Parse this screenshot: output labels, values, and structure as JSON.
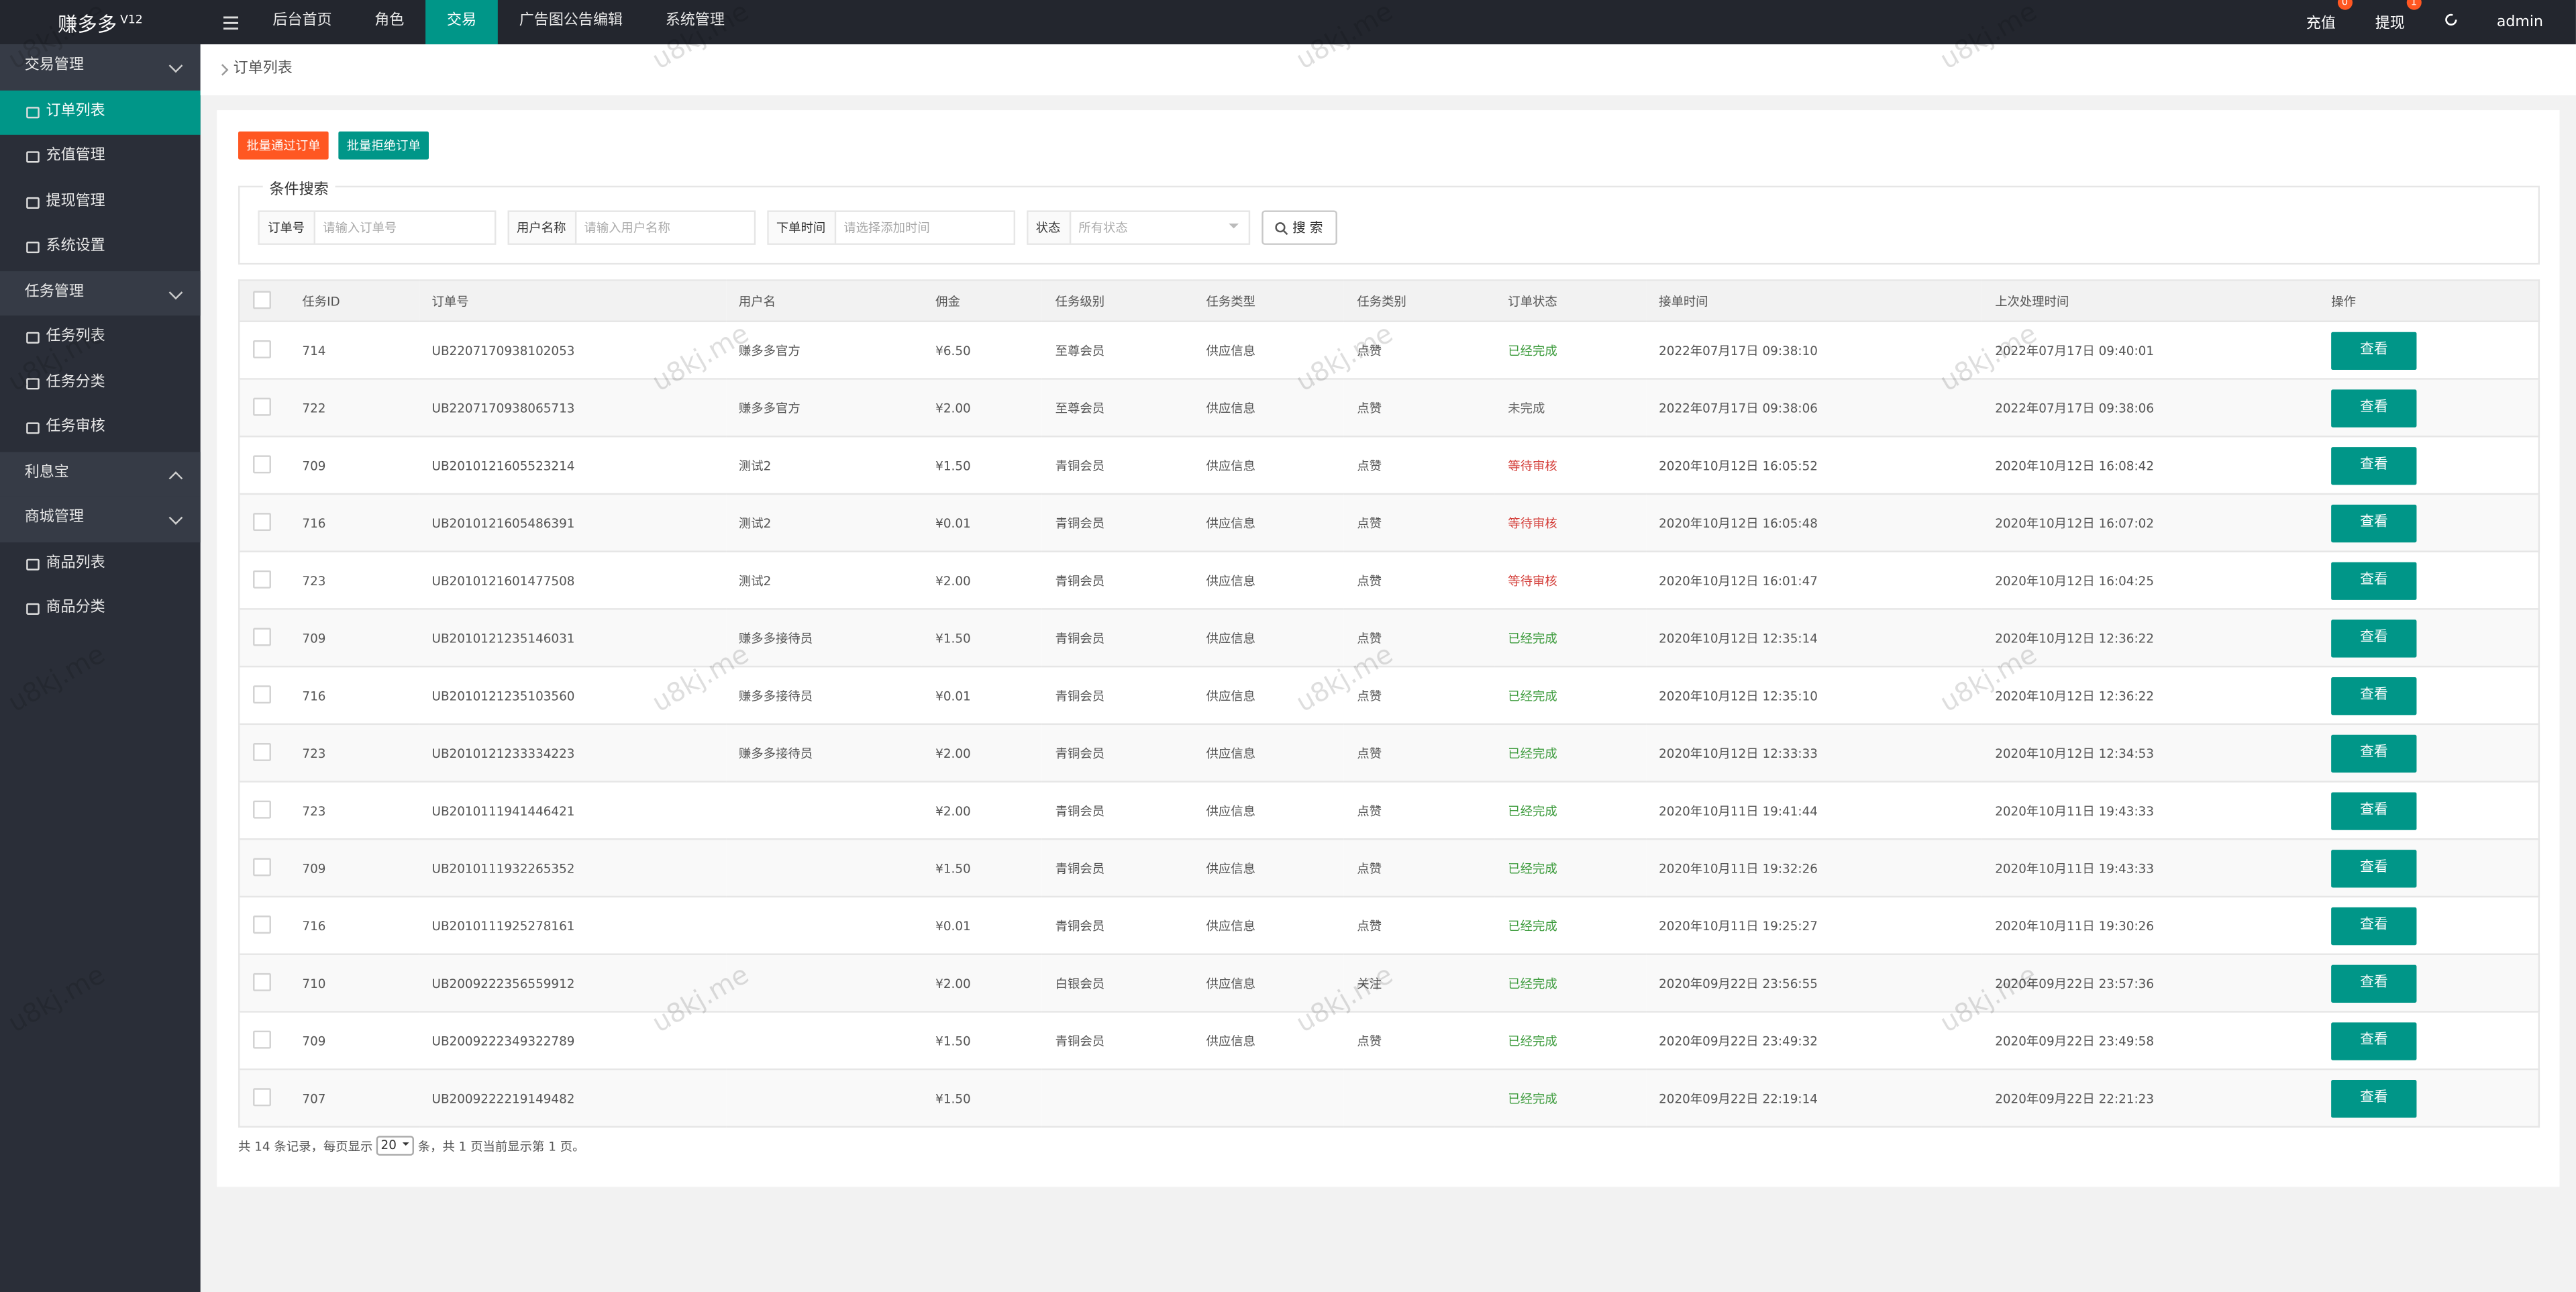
{
  "header": {
    "brand": "赚多多",
    "version": "V12",
    "nav": [
      "后台首页",
      "角色",
      "交易",
      "广告图公告编辑",
      "系统管理"
    ],
    "active_nav": 2,
    "right": [
      {
        "label": "充值",
        "badge": 0
      },
      {
        "label": "提现",
        "badge": 1
      }
    ],
    "user": "admin"
  },
  "sidebar": {
    "groups": [
      {
        "title": "交易管理",
        "expanded": true,
        "items": [
          "订单列表",
          "充值管理",
          "提现管理",
          "系统设置"
        ]
      },
      {
        "title": "任务管理",
        "expanded": true,
        "items": [
          "任务列表",
          "任务分类",
          "任务审核"
        ]
      },
      {
        "title": "利息宝",
        "expanded": false,
        "items": []
      },
      {
        "title": "商城管理",
        "expanded": true,
        "items": [
          "商品列表",
          "商品分类"
        ]
      }
    ],
    "active_group": 0,
    "active_item": 0
  },
  "breadcrumb": "订单列表",
  "buttons": [
    {
      "label": "批量通过订单",
      "color": "#ff5722"
    },
    {
      "label": "批量拒绝订单",
      "color": "#009688"
    }
  ],
  "search": {
    "legend": "条件搜索",
    "fields": [
      {
        "label": "订单号",
        "placeholder": "请输入订单号",
        "width": 104
      },
      {
        "label": "用户名称",
        "placeholder": "请输入用户名称",
        "width": 103
      },
      {
        "label": "下单时间",
        "placeholder": "请选择添加时间",
        "width": 103
      },
      {
        "label": "状态",
        "placeholder": "所有状态",
        "width": 103
      }
    ],
    "submit": "搜 索"
  },
  "table": {
    "columns": [
      "任务ID",
      "订单号",
      "用户名",
      "佣金",
      "任务级别",
      "任务类型",
      "任务类别",
      "订单状态",
      "接单时间",
      "上次处理时间",
      "操作"
    ],
    "action": "查看",
    "rows": [
      {
        "cells": [
          714,
          "UB2207170938102053",
          "赚多多官方",
          "¥6.50",
          "至尊会员",
          "供应信息",
          "点赞",
          "已经完成",
          "2022年07月17日 09:38:10",
          "2022年07月17日 09:40:01"
        ],
        "status_color": "#3c9b3c"
      },
      {
        "cells": [
          722,
          "UB2207170938065713",
          "赚多多官方",
          "¥2.00",
          "至尊会员",
          "供应信息",
          "点赞",
          "未完成",
          "2022年07月17日 09:38:06",
          "2022年07月17日 09:38:06"
        ],
        "status_color": "#666666"
      },
      {
        "cells": [
          709,
          "UB2010121605523214",
          "测试2",
          "¥1.50",
          "青铜会员",
          "供应信息",
          "点赞",
          "等待审核",
          "2020年10月12日 16:05:52",
          "2020年10月12日 16:08:42"
        ],
        "status_color": "#d43f3a"
      },
      {
        "cells": [
          716,
          "UB2010121605486391",
          "测试2",
          "¥0.01",
          "青铜会员",
          "供应信息",
          "点赞",
          "等待审核",
          "2020年10月12日 16:05:48",
          "2020年10月12日 16:07:02"
        ],
        "status_color": "#d43f3a"
      },
      {
        "cells": [
          723,
          "UB2010121601477508",
          "测试2",
          "¥2.00",
          "青铜会员",
          "供应信息",
          "点赞",
          "等待审核",
          "2020年10月12日 16:01:47",
          "2020年10月12日 16:04:25"
        ],
        "status_color": "#d43f3a"
      },
      {
        "cells": [
          709,
          "UB2010121235146031",
          "赚多多接待员",
          "¥1.50",
          "青铜会员",
          "供应信息",
          "点赞",
          "已经完成",
          "2020年10月12日 12:35:14",
          "2020年10月12日 12:36:22"
        ],
        "status_color": "#3c9b3c"
      },
      {
        "cells": [
          716,
          "UB2010121235103560",
          "赚多多接待员",
          "¥0.01",
          "青铜会员",
          "供应信息",
          "点赞",
          "已经完成",
          "2020年10月12日 12:35:10",
          "2020年10月12日 12:36:22"
        ],
        "status_color": "#3c9b3c"
      },
      {
        "cells": [
          723,
          "UB2010121233334223",
          "赚多多接待员",
          "¥2.00",
          "青铜会员",
          "供应信息",
          "点赞",
          "已经完成",
          "2020年10月12日 12:33:33",
          "2020年10月12日 12:34:53"
        ],
        "status_color": "#3c9b3c"
      },
      {
        "cells": [
          723,
          "UB2010111941446421",
          null,
          "¥2.00",
          "青铜会员",
          "供应信息",
          "点赞",
          "已经完成",
          "2020年10月11日 19:41:44",
          "2020年10月11日 19:43:33"
        ],
        "status_color": "#3c9b3c"
      },
      {
        "cells": [
          709,
          "UB2010111932265352",
          null,
          "¥1.50",
          "青铜会员",
          "供应信息",
          "点赞",
          "已经完成",
          "2020年10月11日 19:32:26",
          "2020年10月11日 19:43:33"
        ],
        "status_color": "#3c9b3c"
      },
      {
        "cells": [
          716,
          "UB2010111925278161",
          null,
          "¥0.01",
          "青铜会员",
          "供应信息",
          "点赞",
          "已经完成",
          "2020年10月11日 19:25:27",
          "2020年10月11日 19:30:26"
        ],
        "status_color": "#3c9b3c"
      },
      {
        "cells": [
          710,
          "UB2009222356559912",
          null,
          "¥2.00",
          "白银会员",
          "供应信息",
          "关注",
          "已经完成",
          "2020年09月22日 23:56:55",
          "2020年09月22日 23:57:36"
        ],
        "status_color": "#3c9b3c"
      },
      {
        "cells": [
          709,
          "UB2009222349322789",
          null,
          "¥1.50",
          "青铜会员",
          "供应信息",
          "点赞",
          "已经完成",
          "2020年09月22日 23:49:32",
          "2020年09月22日 23:49:58"
        ],
        "status_color": "#3c9b3c"
      },
      {
        "cells": [
          707,
          "UB2009222219149482",
          null,
          "¥1.50",
          null,
          null,
          null,
          "已经完成",
          "2020年09月22日 22:19:14",
          "2020年09月22日 22:21:23"
        ],
        "status_color": "#3c9b3c"
      }
    ]
  },
  "pagination": {
    "before": "共 14 条记录，每页显示",
    "page_size": "20",
    "after": "条，共 1 页当前显示第 1 页。"
  },
  "watermark": "u8kj.me"
}
